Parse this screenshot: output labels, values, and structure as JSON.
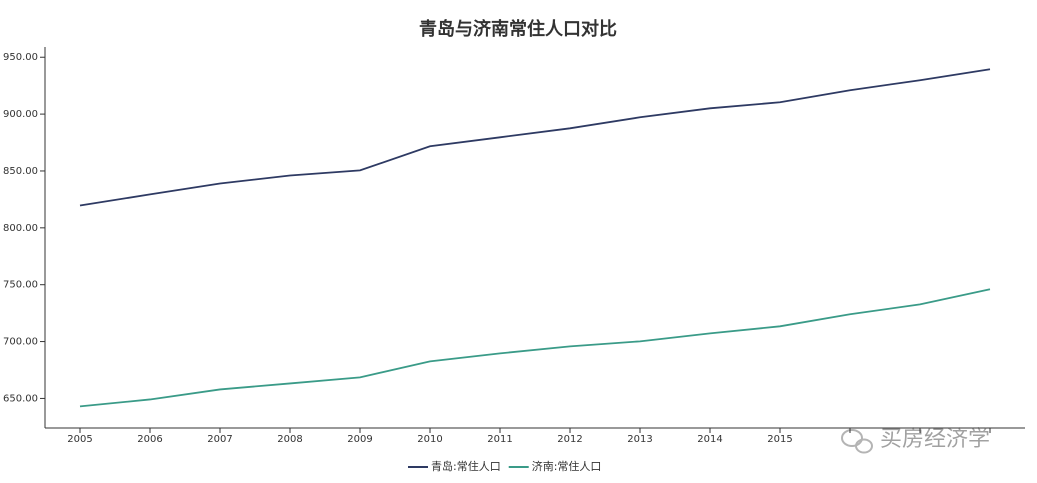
{
  "chart_data": {
    "type": "line",
    "title": "青岛与济南常住人口对比",
    "categories": [
      "2005",
      "2006",
      "2007",
      "2008",
      "2009",
      "2010",
      "2011",
      "2012",
      "2013",
      "2014",
      "2015",
      null,
      null,
      null
    ],
    "series": [
      {
        "name": "青岛:常住人口",
        "color": "#2e3a63",
        "values": [
          819.6,
          829.4,
          839.0,
          846.0,
          850.5,
          871.7,
          879.6,
          887.5,
          897.2,
          905.1,
          910.4,
          921.0,
          929.8,
          939.4
        ]
      },
      {
        "name": "济南:常住人口",
        "color": "#3a9b88",
        "values": [
          643.0,
          649.1,
          657.9,
          663.2,
          668.5,
          682.6,
          689.6,
          695.8,
          700.2,
          707.2,
          713.4,
          724.0,
          732.7,
          746.0
        ]
      }
    ],
    "ylim": [
      624,
      959
    ],
    "yticks": [
      {
        "value": 650,
        "label": "650.00"
      },
      {
        "value": 700,
        "label": "700.00"
      },
      {
        "value": 750,
        "label": "750.00"
      },
      {
        "value": 800,
        "label": "800.00"
      },
      {
        "value": 850,
        "label": "850.00"
      },
      {
        "value": 900,
        "label": "900.00"
      },
      {
        "value": 950,
        "label": "950.00"
      }
    ],
    "legend": "bottom",
    "watermark": "买房经济学"
  }
}
